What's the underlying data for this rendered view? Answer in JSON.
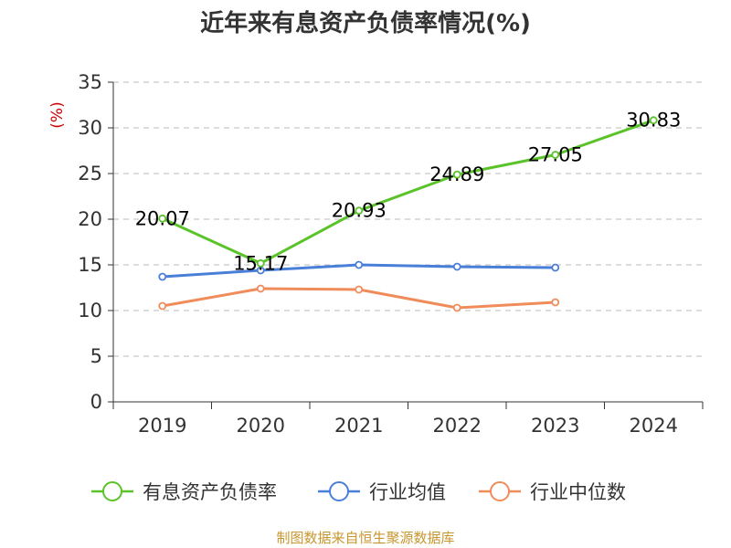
{
  "chart_data": {
    "type": "line",
    "title": "近年来有息资产负债率情况(%)",
    "ylabel": "(%)",
    "xlabel": "",
    "categories": [
      "2019",
      "2020",
      "2021",
      "2022",
      "2023",
      "2024"
    ],
    "ylim": [
      0,
      35
    ],
    "yticks": [
      0,
      5,
      10,
      15,
      20,
      25,
      30,
      35
    ],
    "grid": true,
    "legend_position": "bottom",
    "series": [
      {
        "name": "有息资产负债率",
        "color": "#5bc32a",
        "labels": true,
        "values": [
          20.07,
          15.17,
          20.93,
          24.89,
          27.05,
          30.83
        ]
      },
      {
        "name": "行业均值",
        "color": "#4a7fd9",
        "labels": false,
        "values": [
          13.7,
          14.4,
          15.0,
          14.8,
          14.7,
          null
        ]
      },
      {
        "name": "行业中位数",
        "color": "#f08c5a",
        "labels": false,
        "values": [
          10.5,
          12.4,
          12.3,
          10.3,
          10.9,
          null
        ]
      }
    ]
  },
  "source": "制图数据来自恒生聚源数据库"
}
